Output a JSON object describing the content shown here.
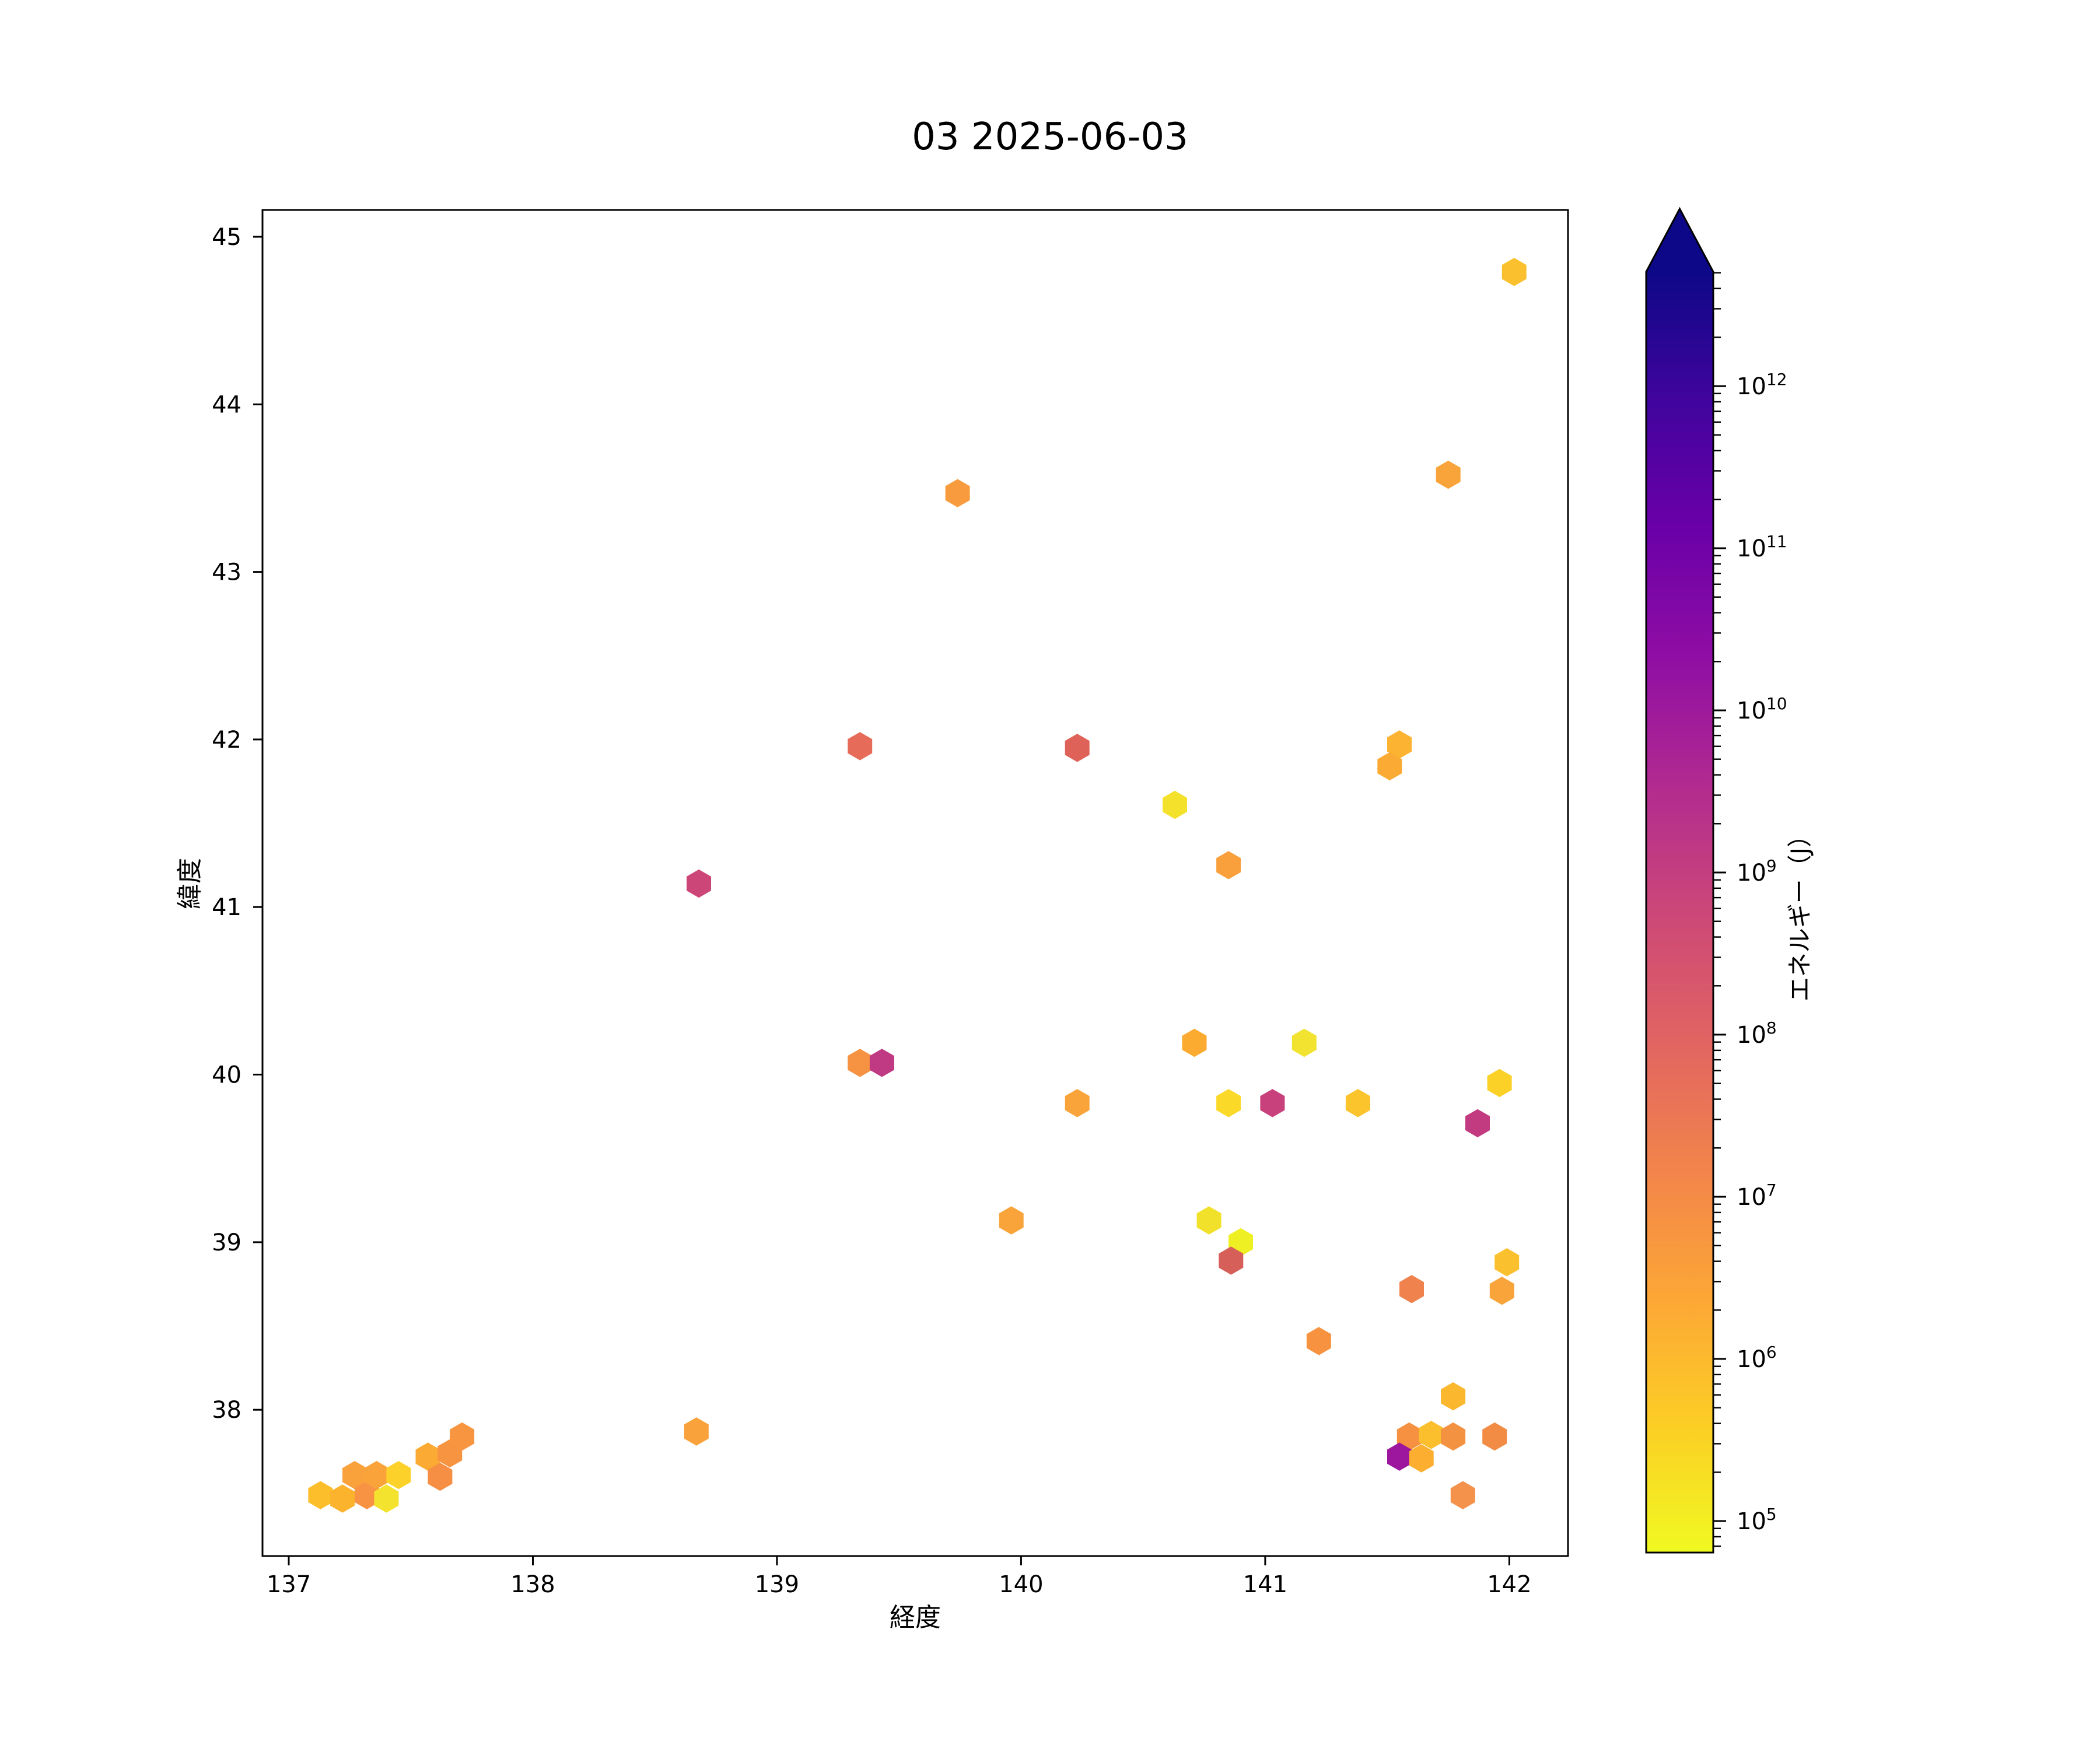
{
  "figure": {
    "title": "03 2025-06-03",
    "background": "#ffffff"
  },
  "chart_data": {
    "type": "scatter",
    "marker": "hexagon",
    "title": "03 2025-06-03",
    "xlabel": "経度",
    "ylabel": "緯度",
    "xlim": [
      136.8925,
      142.2405
    ],
    "ylim": [
      37.127,
      45.16
    ],
    "xticks": [
      137,
      138,
      139,
      140,
      141,
      142
    ],
    "yticks": [
      38,
      39,
      40,
      41,
      42,
      43,
      44,
      45
    ],
    "grid": false,
    "colorbar": {
      "label": "エネルギー（J）",
      "scale": "log",
      "unit": "J",
      "decade_exponents": [
        5,
        6,
        7,
        8,
        9,
        10,
        11,
        12
      ],
      "range_exponents": [
        4.81,
        12.71
      ],
      "extend": "max",
      "colormap": "plasma_r",
      "gradient_stops_bottom_to_top": [
        "#f0f921",
        "#fcce25",
        "#fca636",
        "#f2844b",
        "#e16462",
        "#cc4778",
        "#b12a90",
        "#8f0da4",
        "#6a00a8",
        "#41049d",
        "#0d0887"
      ],
      "arrow_color": "#0d0887"
    },
    "points": [
      {
        "lon": 137.13,
        "lat": 37.49,
        "color": "#fcbe2b",
        "energy_exp": 6.0
      },
      {
        "lon": 137.22,
        "lat": 37.47,
        "color": "#fbb32e",
        "energy_exp": 6.3
      },
      {
        "lon": 137.27,
        "lat": 37.61,
        "color": "#f9a13b",
        "energy_exp": 6.6
      },
      {
        "lon": 137.32,
        "lat": 37.49,
        "color": "#f79342",
        "energy_exp": 7.0
      },
      {
        "lon": 137.36,
        "lat": 37.61,
        "color": "#f9a33a",
        "energy_exp": 6.6
      },
      {
        "lon": 137.4,
        "lat": 37.47,
        "color": "#f3e32e",
        "energy_exp": 5.1
      },
      {
        "lon": 137.45,
        "lat": 37.61,
        "color": "#fcd12a",
        "energy_exp": 5.6
      },
      {
        "lon": 137.57,
        "lat": 37.72,
        "color": "#fbaa33",
        "energy_exp": 6.4
      },
      {
        "lon": 137.66,
        "lat": 37.74,
        "color": "#f79441",
        "energy_exp": 7.0
      },
      {
        "lon": 137.71,
        "lat": 37.84,
        "color": "#f89540",
        "energy_exp": 6.9
      },
      {
        "lon": 137.62,
        "lat": 37.6,
        "color": "#f68e44",
        "energy_exp": 7.1
      },
      {
        "lon": 138.67,
        "lat": 37.87,
        "color": "#f9a23b",
        "energy_exp": 6.6
      },
      {
        "lon": 139.74,
        "lat": 43.47,
        "color": "#f89b3e",
        "energy_exp": 6.8
      },
      {
        "lon": 141.75,
        "lat": 43.58,
        "color": "#f9a43a",
        "energy_exp": 6.6
      },
      {
        "lon": 142.02,
        "lat": 44.79,
        "color": "#fbc02d",
        "energy_exp": 6.0
      },
      {
        "lon": 139.34,
        "lat": 41.96,
        "color": "#e66c59",
        "energy_exp": 7.9
      },
      {
        "lon": 140.23,
        "lat": 41.95,
        "color": "#de6258",
        "energy_exp": 8.1
      },
      {
        "lon": 141.55,
        "lat": 41.97,
        "color": "#fbb331",
        "energy_exp": 6.3
      },
      {
        "lon": 141.51,
        "lat": 41.84,
        "color": "#fbaa33",
        "energy_exp": 6.4
      },
      {
        "lon": 140.63,
        "lat": 41.61,
        "color": "#f3e12c",
        "energy_exp": 5.2
      },
      {
        "lon": 140.85,
        "lat": 41.25,
        "color": "#f9a03c",
        "energy_exp": 6.7
      },
      {
        "lon": 138.68,
        "lat": 41.14,
        "color": "#cc4778",
        "energy_exp": 8.8
      },
      {
        "lon": 140.71,
        "lat": 40.19,
        "color": "#fbab30",
        "energy_exp": 6.4
      },
      {
        "lon": 141.16,
        "lat": 40.19,
        "color": "#f2e330",
        "energy_exp": 5.2
      },
      {
        "lon": 139.34,
        "lat": 40.07,
        "color": "#f69342",
        "energy_exp": 7.0
      },
      {
        "lon": 139.43,
        "lat": 40.07,
        "color": "#bf3983",
        "energy_exp": 9.2
      },
      {
        "lon": 141.96,
        "lat": 39.95,
        "color": "#fbd128",
        "energy_exp": 5.6
      },
      {
        "lon": 140.23,
        "lat": 39.83,
        "color": "#f9a43a",
        "energy_exp": 6.6
      },
      {
        "lon": 140.85,
        "lat": 39.83,
        "color": "#fbd928",
        "energy_exp": 5.5
      },
      {
        "lon": 141.03,
        "lat": 39.83,
        "color": "#c9417c",
        "energy_exp": 8.9
      },
      {
        "lon": 141.38,
        "lat": 39.83,
        "color": "#fbc32c",
        "energy_exp": 6.0
      },
      {
        "lon": 141.87,
        "lat": 39.71,
        "color": "#c23a7f",
        "energy_exp": 9.1
      },
      {
        "lon": 139.96,
        "lat": 39.13,
        "color": "#f9a43a",
        "energy_exp": 6.6
      },
      {
        "lon": 140.77,
        "lat": 39.13,
        "color": "#f2e12b",
        "energy_exp": 5.2
      },
      {
        "lon": 140.9,
        "lat": 39.0,
        "color": "#eef024",
        "energy_exp": 5.0
      },
      {
        "lon": 140.86,
        "lat": 38.89,
        "color": "#d65f59",
        "energy_exp": 8.3
      },
      {
        "lon": 141.6,
        "lat": 38.72,
        "color": "#f0824e",
        "energy_exp": 7.3
      },
      {
        "lon": 141.99,
        "lat": 38.88,
        "color": "#fbc02d",
        "energy_exp": 6.0
      },
      {
        "lon": 141.97,
        "lat": 38.71,
        "color": "#f9a43a",
        "energy_exp": 6.6
      },
      {
        "lon": 141.22,
        "lat": 38.41,
        "color": "#f79340",
        "energy_exp": 7.0
      },
      {
        "lon": 141.77,
        "lat": 38.08,
        "color": "#fbb72e",
        "energy_exp": 6.2
      },
      {
        "lon": 141.59,
        "lat": 37.84,
        "color": "#f59140",
        "energy_exp": 7.0
      },
      {
        "lon": 141.68,
        "lat": 37.85,
        "color": "#fbbe2c",
        "energy_exp": 6.1
      },
      {
        "lon": 141.77,
        "lat": 37.84,
        "color": "#f39241",
        "energy_exp": 7.0
      },
      {
        "lon": 141.94,
        "lat": 37.84,
        "color": "#f28c44",
        "energy_exp": 7.1
      },
      {
        "lon": 141.55,
        "lat": 37.72,
        "color": "#9c179e",
        "energy_exp": 10.3
      },
      {
        "lon": 141.64,
        "lat": 37.71,
        "color": "#fbae30",
        "energy_exp": 6.4
      },
      {
        "lon": 141.81,
        "lat": 37.49,
        "color": "#f4914a",
        "energy_exp": 7.0
      }
    ]
  }
}
